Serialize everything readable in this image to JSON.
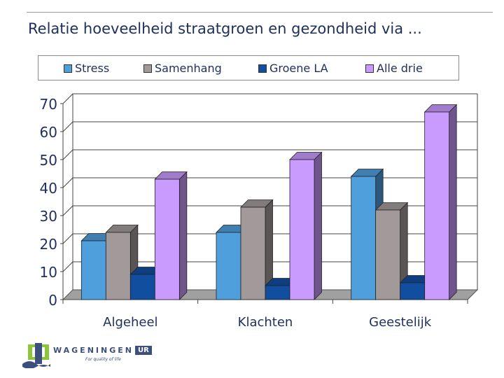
{
  "chart_data": {
    "type": "bar",
    "title": "Relatie hoeveelheid straatgroen en gezondheid via ...",
    "categories": [
      "Algeheel",
      "Klachten",
      "Geestelijk"
    ],
    "series": [
      {
        "name": "Stress",
        "values": [
          21,
          24,
          44
        ],
        "color": "#4f9fdd"
      },
      {
        "name": "Samenhang",
        "values": [
          24,
          33,
          32
        ],
        "color": "#a29a9a"
      },
      {
        "name": "Groene LA",
        "values": [
          9,
          5,
          6
        ],
        "color": "#114ea0"
      },
      {
        "name": "Alle drie",
        "values": [
          43,
          50,
          67
        ],
        "color": "#c99bff"
      }
    ],
    "ylim": [
      0,
      70
    ],
    "yticks": [
      0,
      10,
      20,
      30,
      40,
      50,
      60,
      70
    ],
    "xlabel": "",
    "ylabel": "",
    "grid": true,
    "legend_position": "top"
  },
  "logo": {
    "name": "WAGENINGEN",
    "suffix": "UR",
    "tagline": "For quality of life"
  }
}
